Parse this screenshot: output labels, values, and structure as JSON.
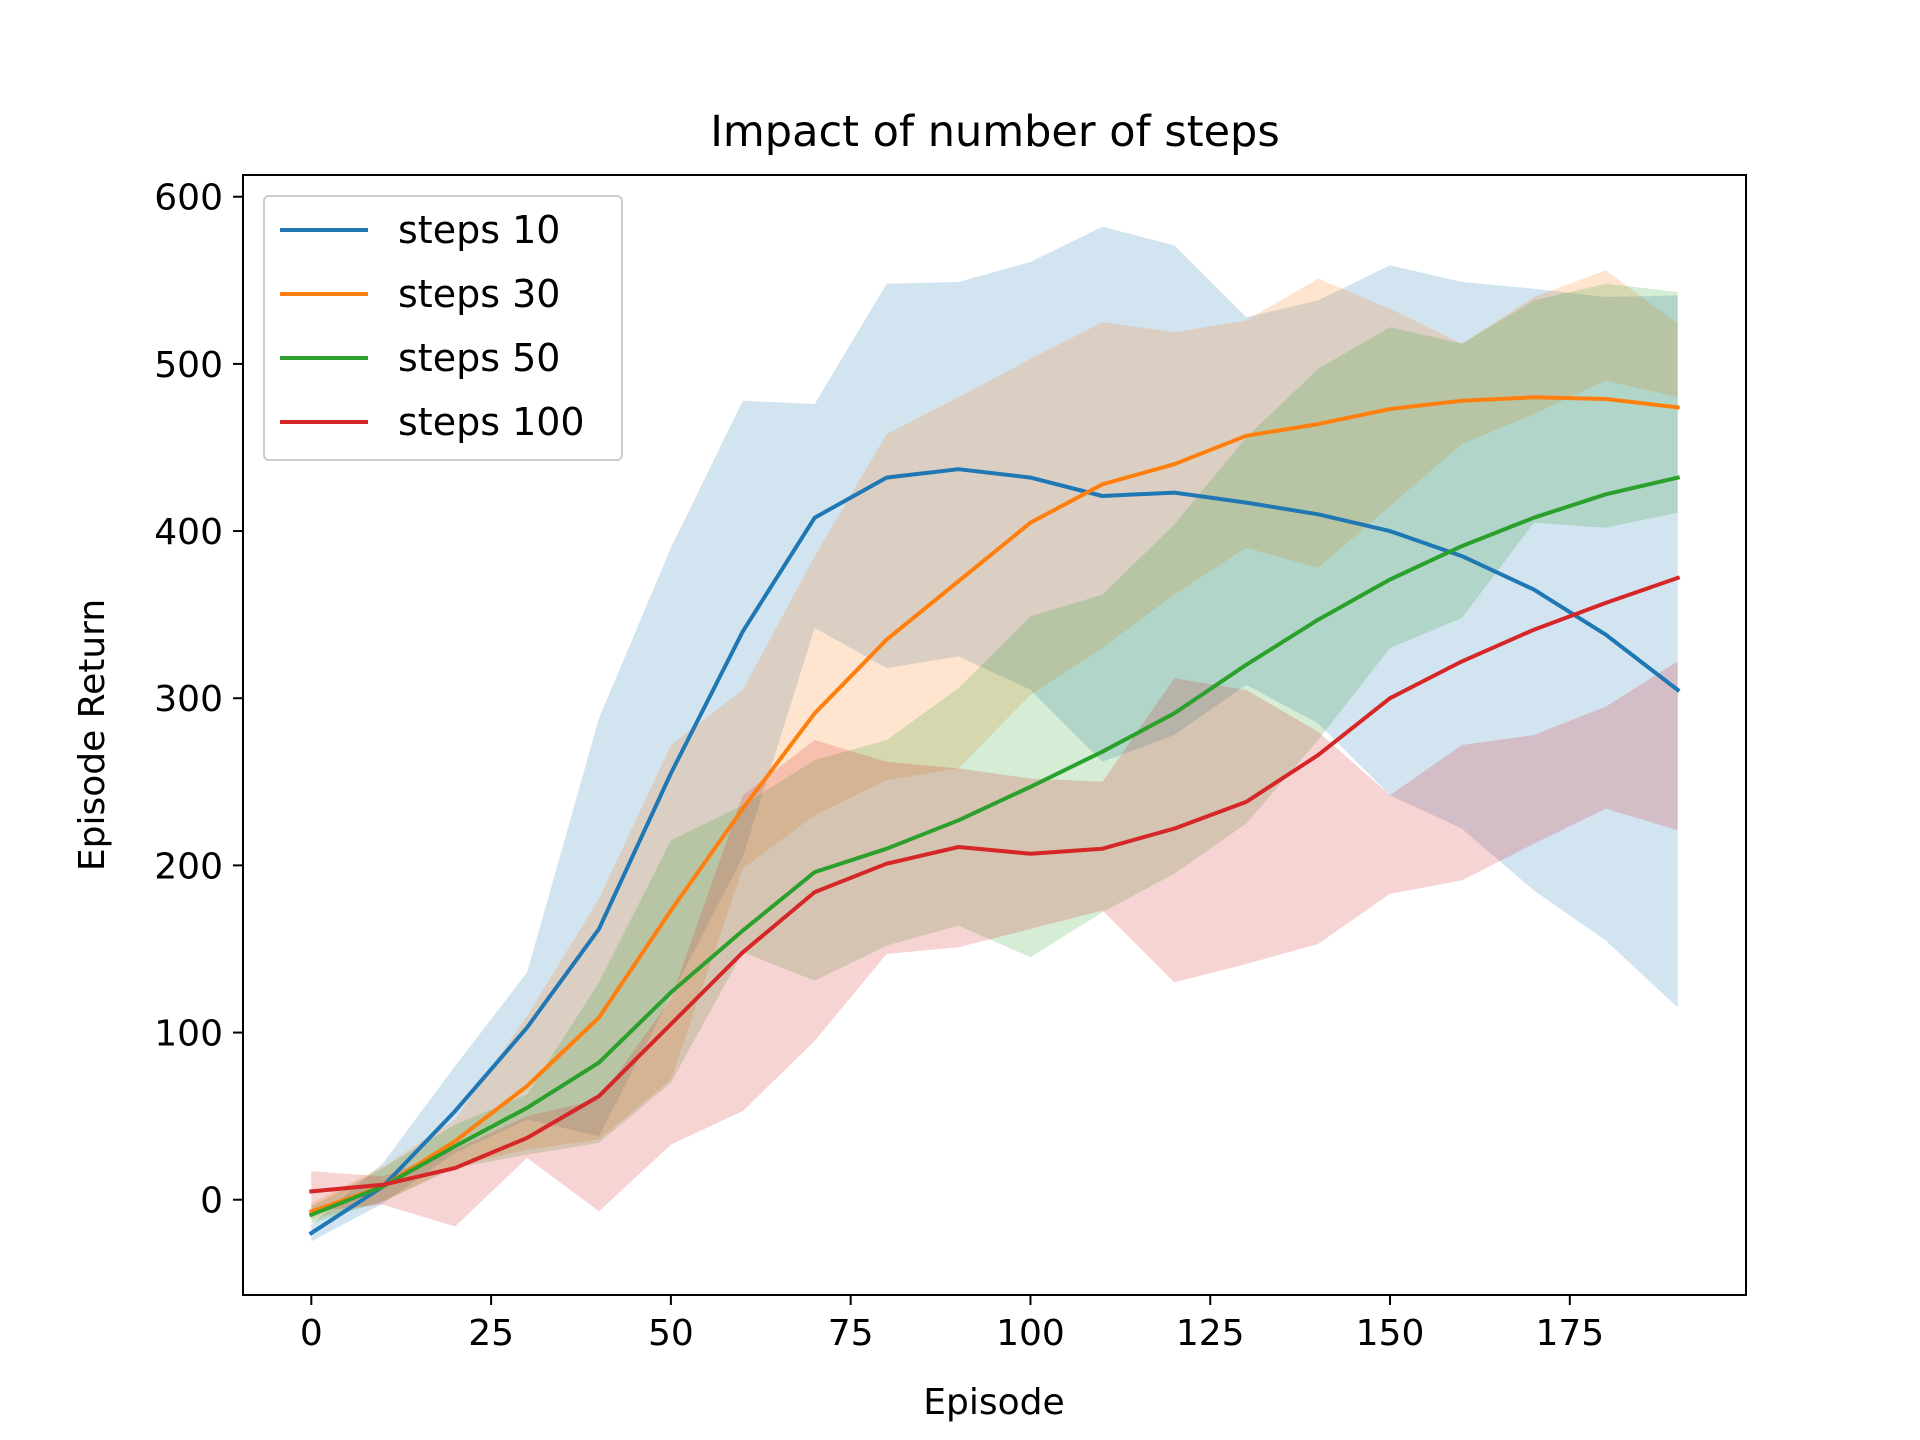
{
  "chart_data": {
    "type": "line",
    "title": "Impact of number of steps",
    "xlabel": "Episode",
    "ylabel": "Episode Return",
    "xlim": [
      -9.5,
      199.5
    ],
    "ylim": [
      -57,
      613
    ],
    "xticks": [
      0,
      25,
      50,
      75,
      100,
      125,
      150,
      175
    ],
    "xtick_labels": [
      "0",
      "25",
      "50",
      "75",
      "100",
      "125",
      "150",
      "175"
    ],
    "yticks": [
      0,
      100,
      200,
      300,
      400,
      500,
      600
    ],
    "ytick_labels": [
      "0",
      "100",
      "200",
      "300",
      "400",
      "500",
      "600"
    ],
    "grid": false,
    "legend_position": "top-left",
    "x": [
      0,
      10,
      20,
      30,
      40,
      50,
      60,
      70,
      80,
      90,
      100,
      110,
      120,
      130,
      140,
      150,
      160,
      170,
      180,
      190
    ],
    "series": [
      {
        "name": "steps 10",
        "color": "#1f77b4",
        "values": [
          -20,
          8,
          53,
          103,
          162,
          255,
          340,
          408,
          432,
          437,
          432,
          421,
          423,
          417,
          410,
          400,
          385,
          365,
          338,
          305
        ],
        "upper": [
          -15,
          22,
          80,
          136,
          288,
          390,
          478,
          476,
          548,
          549,
          561,
          582,
          571,
          528,
          538,
          559,
          549,
          545,
          540,
          541
        ],
        "lower": [
          -25,
          -2,
          28,
          48,
          38,
          122,
          205,
          342,
          318,
          325,
          305,
          262,
          278,
          308,
          285,
          242,
          222,
          185,
          155,
          115
        ]
      },
      {
        "name": "steps 30",
        "color": "#ff7f0e",
        "values": [
          -7,
          8,
          35,
          68,
          109,
          173,
          234,
          291,
          335,
          370,
          405,
          428,
          440,
          457,
          464,
          473,
          478,
          480,
          479,
          474
        ],
        "upper": [
          -2,
          20,
          48,
          110,
          180,
          272,
          305,
          385,
          458,
          480,
          503,
          525,
          519,
          526,
          551,
          533,
          512,
          540,
          556,
          524
        ],
        "lower": [
          -12,
          -1,
          20,
          30,
          36,
          72,
          198,
          230,
          251,
          258,
          302,
          330,
          362,
          390,
          378,
          415,
          452,
          470,
          490,
          480
        ]
      },
      {
        "name": "steps 50",
        "color": "#2ca02c",
        "values": [
          -9,
          8,
          32,
          55,
          82,
          124,
          161,
          196,
          210,
          227,
          247,
          268,
          291,
          320,
          347,
          371,
          391,
          408,
          422,
          432
        ],
        "upper": [
          -4,
          19,
          45,
          63,
          130,
          215,
          236,
          263,
          275,
          306,
          349,
          362,
          404,
          456,
          497,
          522,
          512,
          538,
          548,
          543
        ],
        "lower": [
          -14,
          -1,
          19,
          27,
          34,
          70,
          148,
          131,
          152,
          164,
          145,
          172,
          195,
          225,
          275,
          330,
          348,
          405,
          402,
          411
        ]
      },
      {
        "name": "steps 100",
        "color": "#d62728",
        "values": [
          5,
          9,
          19,
          37,
          62,
          105,
          148,
          184,
          201,
          211,
          207,
          210,
          222,
          238,
          266,
          300,
          322,
          341,
          357,
          372
        ],
        "upper": [
          17,
          14,
          30,
          50,
          60,
          120,
          242,
          275,
          262,
          258,
          252,
          250,
          312,
          305,
          280,
          242,
          272,
          278,
          295,
          322
        ],
        "lower": [
          -7,
          -3,
          -16,
          25,
          -7,
          33,
          53,
          95,
          147,
          151,
          162,
          173,
          130,
          141,
          153,
          183,
          191,
          213,
          234,
          221
        ]
      }
    ]
  }
}
